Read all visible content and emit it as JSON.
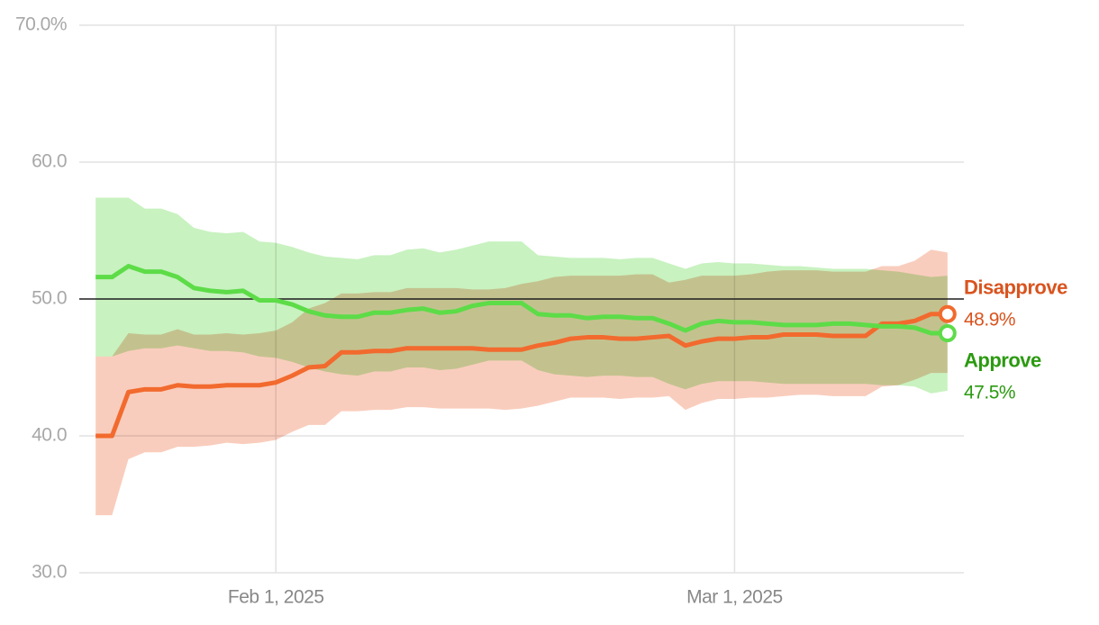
{
  "chart_data": {
    "type": "line",
    "x": [
      "2025-01-21",
      "2025-01-22",
      "2025-01-23",
      "2025-01-24",
      "2025-01-25",
      "2025-01-26",
      "2025-01-27",
      "2025-01-28",
      "2025-01-29",
      "2025-01-30",
      "2025-01-31",
      "2025-02-01",
      "2025-02-02",
      "2025-02-03",
      "2025-02-04",
      "2025-02-05",
      "2025-02-06",
      "2025-02-07",
      "2025-02-08",
      "2025-02-09",
      "2025-02-10",
      "2025-02-11",
      "2025-02-12",
      "2025-02-13",
      "2025-02-14",
      "2025-02-15",
      "2025-02-16",
      "2025-02-17",
      "2025-02-18",
      "2025-02-19",
      "2025-02-20",
      "2025-02-21",
      "2025-02-22",
      "2025-02-23",
      "2025-02-24",
      "2025-02-25",
      "2025-02-26",
      "2025-02-27",
      "2025-02-28",
      "2025-03-01",
      "2025-03-02",
      "2025-03-03",
      "2025-03-04",
      "2025-03-05",
      "2025-03-06",
      "2025-03-07",
      "2025-03-08",
      "2025-03-09",
      "2025-03-10",
      "2025-03-11",
      "2025-03-12",
      "2025-03-13",
      "2025-03-14"
    ],
    "series": [
      {
        "name": "Disapprove",
        "color": "#f26a2e",
        "band_color": "#f9cdbd",
        "label_color": "#d9531e",
        "values": [
          40.0,
          40.0,
          43.2,
          43.4,
          43.4,
          43.7,
          43.6,
          43.6,
          43.7,
          43.7,
          43.7,
          43.9,
          44.4,
          45.0,
          45.1,
          46.1,
          46.1,
          46.2,
          46.2,
          46.4,
          46.4,
          46.4,
          46.4,
          46.4,
          46.3,
          46.3,
          46.3,
          46.6,
          46.8,
          47.1,
          47.2,
          47.2,
          47.1,
          47.1,
          47.2,
          47.3,
          46.6,
          46.9,
          47.1,
          47.1,
          47.2,
          47.2,
          47.4,
          47.4,
          47.4,
          47.3,
          47.3,
          47.3,
          48.2,
          48.2,
          48.4,
          48.9,
          48.9
        ],
        "upper": [
          45.8,
          45.8,
          47.5,
          47.4,
          47.4,
          47.8,
          47.4,
          47.4,
          47.5,
          47.4,
          47.5,
          47.7,
          48.3,
          49.3,
          49.7,
          50.4,
          50.4,
          50.5,
          50.5,
          50.8,
          50.8,
          50.8,
          50.8,
          50.7,
          50.7,
          50.8,
          51.1,
          51.3,
          51.6,
          51.7,
          51.7,
          51.7,
          51.7,
          51.8,
          51.8,
          51.2,
          51.4,
          51.7,
          51.7,
          51.7,
          51.8,
          52.0,
          52.1,
          52.1,
          52.1,
          52.0,
          52.0,
          52.0,
          52.4,
          52.4,
          52.8,
          53.6,
          53.4
        ],
        "lower": [
          34.2,
          34.2,
          38.3,
          38.8,
          38.8,
          39.2,
          39.2,
          39.3,
          39.5,
          39.4,
          39.5,
          39.7,
          40.3,
          40.8,
          40.8,
          41.8,
          41.8,
          41.9,
          41.9,
          42.1,
          42.1,
          42.0,
          42.0,
          42.0,
          42.0,
          41.9,
          42.0,
          42.2,
          42.5,
          42.8,
          42.8,
          42.8,
          42.7,
          42.8,
          42.8,
          42.9,
          41.9,
          42.4,
          42.7,
          42.7,
          42.8,
          42.8,
          42.9,
          43.0,
          43.0,
          42.9,
          42.9,
          42.9,
          43.6,
          43.7,
          44.1,
          44.6,
          44.6
        ],
        "value_labels": [
          null,
          null,
          null,
          null,
          null,
          null,
          null,
          null,
          null,
          null,
          null,
          null,
          null,
          null,
          null,
          null,
          null,
          null,
          null,
          null,
          null,
          null,
          null,
          null,
          null,
          null,
          null,
          null,
          null,
          null,
          null,
          null,
          null,
          null,
          null,
          null,
          null,
          null,
          null,
          null,
          null,
          null,
          null,
          null,
          null,
          null,
          null,
          null,
          null,
          null,
          null,
          null,
          "48.9%"
        ]
      },
      {
        "name": "Approve",
        "color": "#5ddc48",
        "band_color": "#c8f2c0",
        "label_color": "#2b9a10",
        "values": [
          51.6,
          51.6,
          52.4,
          52.0,
          52.0,
          51.6,
          50.8,
          50.6,
          50.5,
          50.6,
          49.9,
          49.9,
          49.6,
          49.1,
          48.8,
          48.7,
          48.7,
          49.0,
          49.0,
          49.2,
          49.3,
          49.0,
          49.1,
          49.5,
          49.7,
          49.7,
          49.7,
          48.9,
          48.8,
          48.8,
          48.6,
          48.7,
          48.7,
          48.6,
          48.6,
          48.2,
          47.7,
          48.2,
          48.4,
          48.3,
          48.3,
          48.2,
          48.1,
          48.1,
          48.1,
          48.2,
          48.2,
          48.1,
          48.0,
          48.0,
          47.9,
          47.5,
          47.5
        ],
        "upper": [
          57.4,
          57.4,
          57.4,
          56.6,
          56.6,
          56.2,
          55.2,
          54.9,
          54.8,
          54.9,
          54.2,
          54.1,
          53.8,
          53.4,
          53.1,
          53.0,
          52.9,
          53.2,
          53.2,
          53.6,
          53.7,
          53.4,
          53.6,
          53.9,
          54.2,
          54.2,
          54.2,
          53.2,
          53.1,
          53.0,
          53.0,
          53.0,
          52.9,
          53.0,
          53.0,
          52.6,
          52.2,
          52.6,
          52.7,
          52.6,
          52.6,
          52.5,
          52.4,
          52.4,
          52.3,
          52.2,
          52.2,
          52.2,
          52.1,
          52.0,
          51.8,
          51.6,
          51.7
        ],
        "lower": [
          45.8,
          45.8,
          46.2,
          46.4,
          46.4,
          46.6,
          46.4,
          46.2,
          46.2,
          46.1,
          45.8,
          45.7,
          45.4,
          45.0,
          44.7,
          44.5,
          44.4,
          44.7,
          44.7,
          45.0,
          45.0,
          44.8,
          44.9,
          45.2,
          45.5,
          45.5,
          45.5,
          44.8,
          44.5,
          44.4,
          44.3,
          44.4,
          44.4,
          44.3,
          44.3,
          43.8,
          43.4,
          43.8,
          44.0,
          44.0,
          44.0,
          43.9,
          43.8,
          43.8,
          43.8,
          43.8,
          43.8,
          43.8,
          43.7,
          43.7,
          43.6,
          43.1,
          43.3
        ],
        "value_labels": [
          null,
          null,
          null,
          null,
          null,
          null,
          null,
          null,
          null,
          null,
          null,
          null,
          null,
          null,
          null,
          null,
          null,
          null,
          null,
          null,
          null,
          null,
          null,
          null,
          null,
          null,
          null,
          null,
          null,
          null,
          null,
          null,
          null,
          null,
          null,
          null,
          null,
          null,
          null,
          null,
          null,
          null,
          null,
          null,
          null,
          null,
          null,
          null,
          null,
          null,
          null,
          null,
          "47.5%"
        ]
      }
    ],
    "reference_line": 50,
    "xlim": [
      "2025-01-20",
      "2025-03-15"
    ],
    "xticks": [
      {
        "value": "2025-02-01",
        "label": "Feb 1, 2025"
      },
      {
        "value": "2025-03-01",
        "label": "Mar 1, 2025"
      }
    ],
    "ylim": [
      30,
      70
    ],
    "yticks": [
      {
        "value": 30,
        "label": "30.0"
      },
      {
        "value": 40,
        "label": "40.0"
      },
      {
        "value": 50,
        "label": "50.0"
      },
      {
        "value": 60,
        "label": "60.0"
      },
      {
        "value": 70,
        "label": "70.0%"
      }
    ],
    "grid": true
  }
}
